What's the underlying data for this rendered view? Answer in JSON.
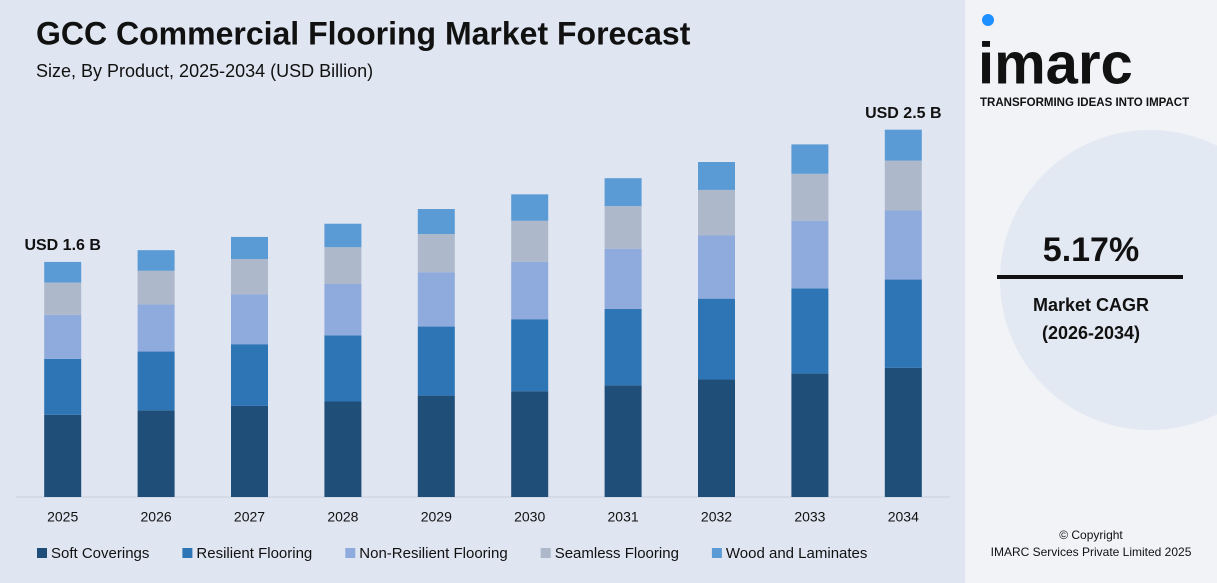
{
  "chart_data": {
    "type": "stacked-bar",
    "title": "GCC Commercial Flooring Market Forecast",
    "subtitle": "Size, By Product, 2025-2034 (USD Billion)",
    "categories": [
      "2025",
      "2026",
      "2027",
      "2028",
      "2029",
      "2030",
      "2031",
      "2032",
      "2033",
      "2034"
    ],
    "series": [
      {
        "name": "Soft Coverings",
        "color": "#1f4e79",
        "values": [
          0.56,
          0.59,
          0.62,
          0.65,
          0.69,
          0.72,
          0.76,
          0.8,
          0.84,
          0.88
        ]
      },
      {
        "name": "Resilient Flooring",
        "color": "#2e75b6",
        "values": [
          0.38,
          0.4,
          0.42,
          0.45,
          0.47,
          0.49,
          0.52,
          0.55,
          0.58,
          0.6
        ]
      },
      {
        "name": "Non-Resilient Flooring",
        "color": "#8faadc",
        "values": [
          0.3,
          0.32,
          0.34,
          0.35,
          0.37,
          0.39,
          0.41,
          0.43,
          0.46,
          0.47
        ]
      },
      {
        "name": "Seamless Flooring",
        "color": "#adb9ca",
        "values": [
          0.22,
          0.23,
          0.24,
          0.25,
          0.26,
          0.28,
          0.29,
          0.31,
          0.32,
          0.34
        ]
      },
      {
        "name": "Wood and Laminates",
        "color": "#5b9bd5",
        "values": [
          0.14,
          0.14,
          0.15,
          0.16,
          0.17,
          0.18,
          0.19,
          0.19,
          0.2,
          0.21
        ]
      }
    ],
    "annotations": [
      {
        "category": "2025",
        "text": "USD 1.6 B"
      },
      {
        "category": "2034",
        "text": "USD 2.5 B"
      }
    ],
    "ylim": [
      0,
      2.6
    ],
    "legend": "bottom"
  },
  "sidebar": {
    "logo": "imarc",
    "tagline": "TRANSFORMING IDEAS INTO IMPACT",
    "cagr": "5.17%",
    "cagr_label": "Market CAGR",
    "cagr_period": "(2026-2034)",
    "copyright": "© Copyright",
    "company": "IMARC Services Private Limited 2025"
  }
}
